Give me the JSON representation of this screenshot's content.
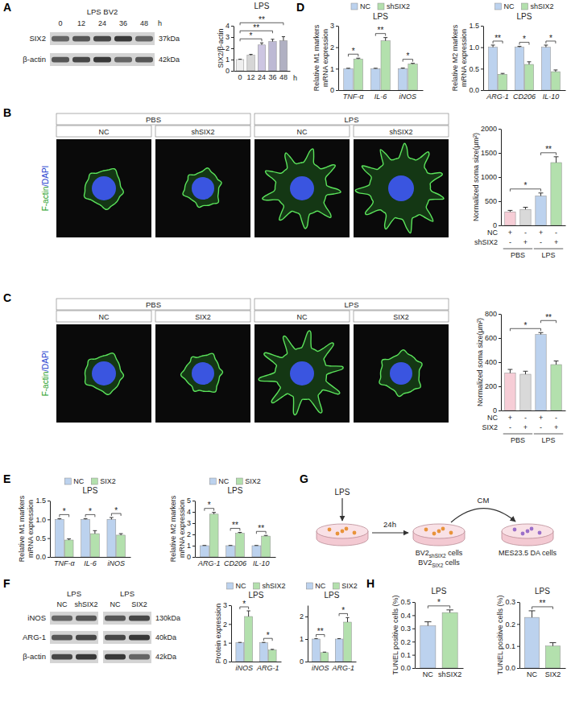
{
  "chart_data": [
    {
      "type": "bar",
      "title": "LPS",
      "y_label": "SIX2/β-actin",
      "x_label": "h",
      "categories": [
        "0",
        "12",
        "24",
        "36",
        "48"
      ],
      "values": [
        1,
        1.38,
        2.3,
        2.6,
        2.68
      ],
      "errors": [
        0.03,
        0.08,
        0.18,
        0.2,
        0.35
      ],
      "colors": [
        "#efefef",
        "#d6d6d6",
        "#cdc6e2",
        "#bdb9d4",
        "#b0b0c2"
      ],
      "ylim": [
        0,
        4
      ],
      "yticks": [
        0,
        1,
        2,
        3,
        4
      ],
      "comparisons": [
        {
          "pair": [
            0,
            2
          ],
          "label": "*"
        },
        {
          "pair": [
            0,
            3
          ],
          "label": "**"
        },
        {
          "pair": [
            0,
            4
          ],
          "label": "**"
        }
      ]
    },
    {
      "type": "bar",
      "y_label": "Normalized soma size(μm²)",
      "categories": [
        null,
        null,
        null,
        null
      ],
      "values": [
        280,
        330,
        610,
        1300
      ],
      "errors": [
        30,
        45,
        60,
        120
      ],
      "colors": [
        "#f6cdd6",
        "#d9d9d9",
        "#bcd2ee",
        "#b3e0ad"
      ],
      "ylim": [
        0,
        2000
      ],
      "yticks": [
        0,
        500,
        1000,
        1500,
        2000
      ],
      "comparisons": [
        {
          "pair": [
            0,
            2
          ],
          "label": "*"
        },
        {
          "pair": [
            2,
            3
          ],
          "label": "**"
        }
      ],
      "x_table": {
        "rows": [
          {
            "label": "NC",
            "marks": [
              "+",
              "-",
              "+",
              "-"
            ]
          },
          {
            "label": "shSIX2",
            "marks": [
              "-",
              "+",
              "-",
              "+"
            ]
          }
        ],
        "groups": [
          {
            "label": "PBS",
            "size": 2
          },
          {
            "label": "LPS",
            "size": 2
          }
        ]
      }
    },
    {
      "type": "bar",
      "y_label": "Normalized soma size(μm²)",
      "categories": [
        null,
        null,
        null,
        null
      ],
      "values": [
        310,
        300,
        630,
        380
      ],
      "errors": [
        30,
        25,
        15,
        30
      ],
      "colors": [
        "#f6cdd6",
        "#d9d9d9",
        "#bcd2ee",
        "#b3e0ad"
      ],
      "ylim": [
        0,
        800
      ],
      "yticks": [
        0,
        200,
        400,
        600,
        800
      ],
      "comparisons": [
        {
          "pair": [
            0,
            2
          ],
          "label": "*"
        },
        {
          "pair": [
            2,
            3
          ],
          "label": "**"
        }
      ],
      "x_table": {
        "rows": [
          {
            "label": "NC",
            "marks": [
              "+",
              "-",
              "+",
              "-"
            ]
          },
          {
            "label": "SIX2",
            "marks": [
              "-",
              "+",
              "-",
              "+"
            ]
          }
        ],
        "groups": [
          {
            "label": "PBS",
            "size": 2
          },
          {
            "label": "LPS",
            "size": 2
          }
        ]
      }
    },
    {
      "type": "grouped_bar",
      "title": "LPS",
      "y_label": "Relative M1 markers mRNA expression",
      "legend": "top",
      "categories": [
        "TNF-α",
        "IL-6",
        "iNOS"
      ],
      "series": [
        {
          "name": "NC",
          "color": "#bcd2ee",
          "values": [
            1,
            1,
            1
          ],
          "errors": [
            0.02,
            0.02,
            0.03
          ]
        },
        {
          "name": "shSIX2",
          "color": "#b3e0ad",
          "values": [
            1.45,
            2.3,
            1.22
          ],
          "errors": [
            0.04,
            0.15,
            0.03
          ]
        }
      ],
      "ylim": [
        0,
        3
      ],
      "yticks": [
        0,
        1,
        2,
        3
      ],
      "significance": [
        "*",
        "**",
        "*"
      ]
    },
    {
      "type": "grouped_bar",
      "title": "LPS",
      "y_label": "Relative M2 markers mRNA expression",
      "legend": "top",
      "categories": [
        "ARG-1",
        "CD206",
        "IL-10"
      ],
      "series": [
        {
          "name": "NC",
          "color": "#bcd2ee",
          "values": [
            1,
            1,
            1
          ],
          "errors": [
            0.05,
            0.02,
            0.05
          ]
        },
        {
          "name": "shSIX2",
          "color": "#b3e0ad",
          "values": [
            0.37,
            0.6,
            0.43
          ],
          "errors": [
            0.02,
            0.06,
            0.04
          ]
        }
      ],
      "ylim": [
        0,
        1.5
      ],
      "yticks": [
        {
          "value": 0,
          "label": "0.0"
        },
        0.5,
        {
          "value": 1,
          "label": "1.0"
        },
        1.5
      ],
      "significance": [
        "**",
        "*",
        "*"
      ]
    },
    {
      "type": "grouped_bar",
      "title": "LPS",
      "y_label": "Relative M1 markers mRNA expression",
      "legend": "top",
      "categories": [
        "TNF-α",
        "IL-6",
        "iNOS"
      ],
      "series": [
        {
          "name": "NC",
          "color": "#bcd2ee",
          "values": [
            1,
            1,
            1
          ],
          "errors": [
            0.02,
            0.02,
            0.05
          ]
        },
        {
          "name": "SIX2",
          "color": "#b3e0ad",
          "values": [
            0.45,
            0.62,
            0.58
          ],
          "errors": [
            0.03,
            0.08,
            0.04
          ]
        }
      ],
      "ylim": [
        0,
        1.5
      ],
      "yticks": [
        {
          "value": 0,
          "label": "0.0"
        },
        0.5,
        {
          "value": 1,
          "label": "1.0"
        },
        1.5
      ],
      "significance": [
        "*",
        "*",
        "*"
      ]
    },
    {
      "type": "grouped_bar",
      "title": "LPS",
      "y_label": "Relative M2 markers mRNA expression",
      "legend": "top",
      "categories": [
        "ARG-1",
        "CD206",
        "IL-10"
      ],
      "series": [
        {
          "name": "NC",
          "color": "#bcd2ee",
          "values": [
            1,
            1,
            1
          ],
          "errors": [
            0.02,
            0.02,
            0.02
          ]
        },
        {
          "name": "SIX2",
          "color": "#b3e0ad",
          "values": [
            3.8,
            2.1,
            1.85
          ],
          "errors": [
            0.15,
            0.08,
            0.06
          ]
        }
      ],
      "ylim": [
        0,
        5
      ],
      "yticks": [
        0,
        1,
        2,
        3,
        4,
        5
      ],
      "significance": [
        "*",
        "**",
        "**"
      ]
    },
    {
      "type": "grouped_bar",
      "title": "LPS",
      "y_label": "Protein expression",
      "legend": "top",
      "categories": [
        "iNOS",
        "ARG-1"
      ],
      "series": [
        {
          "name": "NC",
          "color": "#bcd2ee",
          "values": [
            1,
            1
          ],
          "errors": [
            0.02,
            0.02
          ]
        },
        {
          "name": "shSIX2",
          "color": "#b3e0ad",
          "values": [
            2.4,
            0.62
          ],
          "errors": [
            0.3,
            0.03
          ]
        }
      ],
      "ylim": [
        0,
        3
      ],
      "yticks": [
        0,
        1,
        2,
        3
      ],
      "significance": [
        "*",
        "*"
      ]
    },
    {
      "type": "grouped_bar",
      "title": "LPS",
      "legend": "top",
      "categories": [
        "iNOS",
        "ARG-1"
      ],
      "series": [
        {
          "name": "NC",
          "color": "#bcd2ee",
          "values": [
            1,
            1
          ],
          "errors": [
            0.02,
            0.02
          ]
        },
        {
          "name": "SIX2",
          "color": "#b3e0ad",
          "values": [
            0.4,
            1.75
          ],
          "errors": [
            0.02,
            0.2
          ]
        }
      ],
      "ylim": [
        0,
        2.5
      ],
      "yticks": [
        0,
        1,
        2
      ],
      "significance": [
        "**",
        "*"
      ]
    },
    {
      "type": "bar",
      "title": "LPS",
      "y_label": "TUNEL positive cells (%)",
      "categories": [
        "NC",
        "shSIX2"
      ],
      "values": [
        0.32,
        0.42
      ],
      "errors": [
        0.03,
        0.02
      ],
      "colors": [
        "#bcd2ee",
        "#b3e0ad"
      ],
      "ylim": [
        0,
        0.5
      ],
      "yticks": [
        {
          "value": 0,
          "label": "0.0"
        },
        0.1,
        0.2,
        0.3,
        0.4,
        0.5
      ],
      "comparisons": [
        {
          "pair": [
            0,
            1
          ],
          "label": "*"
        }
      ]
    },
    {
      "type": "bar",
      "title": "LPS",
      "y_label": "TUNEL positive cells (%)",
      "categories": [
        "NC",
        "SIX2"
      ],
      "values": [
        0.23,
        0.1
      ],
      "errors": [
        0.03,
        0.015
      ],
      "colors": [
        "#bcd2ee",
        "#b3e0ad"
      ],
      "ylim": [
        0,
        0.3
      ],
      "yticks": [
        {
          "value": 0,
          "label": "0.0"
        },
        0.1,
        0.2,
        0.3
      ],
      "comparisons": [
        {
          "pair": [
            0,
            1
          ],
          "label": "**"
        }
      ]
    }
  ],
  "panel_labels": [
    "A",
    "B",
    "C",
    "D",
    "E",
    "F",
    "G",
    "H"
  ],
  "blots": [
    {
      "groups": [
        {
          "header": "LPS BV2",
          "lanes": [
            "0",
            "12",
            "24",
            "36",
            "48"
          ]
        }
      ],
      "lane_unit": "h",
      "rows": [
        {
          "label": "SIX2",
          "size": "37kDa"
        },
        {
          "label": "β-actin",
          "size": "42kDa"
        }
      ]
    },
    {
      "groups": [
        {
          "header": "LPS",
          "lanes": [
            "NC",
            "shSIX2"
          ]
        },
        {
          "header": "LPS",
          "lanes": [
            "NC",
            "SIX2"
          ]
        }
      ],
      "rows": [
        {
          "label": "iNOS",
          "size": "130kDa"
        },
        {
          "label": "ARG-1",
          "size": "40kDa"
        },
        {
          "label": "β-actin",
          "size": "42kDa"
        }
      ]
    }
  ],
  "micrographs": [
    {
      "stain": "F-actin/DAPI",
      "groups": [
        {
          "header": "PBS",
          "lanes": [
            "NC",
            "shSIX2"
          ]
        },
        {
          "header": "LPS",
          "lanes": [
            "NC",
            "shSIX2"
          ]
        }
      ]
    },
    {
      "stain": "F-actin/DAPI",
      "groups": [
        {
          "header": "PBS",
          "lanes": [
            "NC",
            "SIX2"
          ]
        },
        {
          "header": "LPS",
          "lanes": [
            "NC",
            "SIX2"
          ]
        }
      ]
    }
  ],
  "schematic": {
    "stimulus": "LPS",
    "time": "24h",
    "transfer": "CM",
    "source_cells": [
      {
        "main": "BV2",
        "sub": "shSIX2",
        "suffix": "cells"
      },
      {
        "main": "BV2",
        "sub": "SIX2",
        "suffix": "cells"
      }
    ],
    "target_cells": "MES23.5 DA cells"
  }
}
